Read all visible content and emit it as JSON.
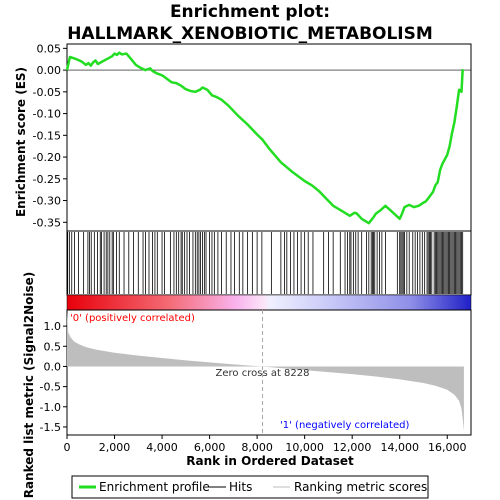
{
  "chart_data": {
    "type": "line",
    "title_line1": "Enrichment plot:",
    "title_line2": "HALLMARK_XENOBIOTIC_METABOLISM",
    "ylabel_top": "Enrichment score (ES)",
    "ylabel_bottom": "Ranked list metric (Signal2Noise)",
    "xlabel": "Rank in Ordered Dataset",
    "xlim": [
      0,
      17000
    ],
    "x_ticks": [
      0,
      2000,
      4000,
      6000,
      8000,
      10000,
      12000,
      14000,
      16000
    ],
    "x_tick_labels": [
      "0",
      "2,000",
      "4,000",
      "6,000",
      "8,000",
      "10,000",
      "12,000",
      "14,000",
      "16,000"
    ],
    "es_ylim": [
      -0.37,
      0.06
    ],
    "es_ticks": [
      0.05,
      0.0,
      -0.05,
      -0.1,
      -0.15,
      -0.2,
      -0.25,
      -0.3,
      -0.35
    ],
    "es_tick_labels": [
      "0.05",
      "0.00",
      "-0.05",
      "-0.10",
      "-0.15",
      "-0.20",
      "-0.25",
      "-0.30",
      "-0.35"
    ],
    "metric_ylim": [
      -1.7,
      1.4
    ],
    "metric_ticks": [
      1.0,
      0.5,
      0.0,
      -0.5,
      -1.0,
      -1.5
    ],
    "metric_tick_labels": [
      "1.0",
      "0.5",
      "0.0",
      "-0.5",
      "-1.0",
      "-1.5"
    ],
    "series": [
      {
        "name": "Enrichment profile",
        "color": "#00dd00",
        "x": [
          0,
          120,
          250,
          400,
          600,
          800,
          900,
          1000,
          1100,
          1200,
          1300,
          1500,
          1700,
          1900,
          2000,
          2100,
          2200,
          2300,
          2500,
          2700,
          2900,
          3100,
          3300,
          3500,
          3600,
          3800,
          4000,
          4200,
          4400,
          4600,
          4800,
          5000,
          5200,
          5400,
          5600,
          5700,
          5900,
          6100,
          6300,
          6500,
          6800,
          7200,
          7600,
          8000,
          8228,
          8500,
          9000,
          9500,
          10000,
          10300,
          10600,
          10900,
          11200,
          11600,
          11900,
          12100,
          12200,
          12400,
          12700,
          12900,
          13000,
          13200,
          13400,
          13600,
          13800,
          14000,
          14100,
          14200,
          14400,
          14600,
          14800,
          15000,
          15100,
          15200,
          15400,
          15500,
          15600,
          15700,
          15800,
          15900,
          16000,
          16100,
          16200,
          16300,
          16400,
          16500,
          16600,
          16650
        ],
        "y": [
          0.0,
          0.03,
          0.028,
          0.025,
          0.02,
          0.012,
          0.016,
          0.01,
          0.018,
          0.022,
          0.014,
          0.02,
          0.026,
          0.032,
          0.038,
          0.035,
          0.04,
          0.036,
          0.038,
          0.025,
          0.012,
          0.005,
          0.0,
          0.004,
          -0.002,
          -0.008,
          -0.012,
          -0.02,
          -0.028,
          -0.03,
          -0.036,
          -0.044,
          -0.048,
          -0.05,
          -0.045,
          -0.04,
          -0.045,
          -0.058,
          -0.062,
          -0.068,
          -0.082,
          -0.105,
          -0.125,
          -0.148,
          -0.16,
          -0.18,
          -0.212,
          -0.235,
          -0.255,
          -0.265,
          -0.278,
          -0.295,
          -0.312,
          -0.325,
          -0.335,
          -0.328,
          -0.33,
          -0.342,
          -0.352,
          -0.338,
          -0.33,
          -0.322,
          -0.312,
          -0.322,
          -0.332,
          -0.342,
          -0.33,
          -0.315,
          -0.31,
          -0.315,
          -0.312,
          -0.305,
          -0.302,
          -0.295,
          -0.28,
          -0.265,
          -0.258,
          -0.23,
          -0.215,
          -0.205,
          -0.195,
          -0.175,
          -0.145,
          -0.12,
          -0.085,
          -0.045,
          -0.05,
          0.002
        ]
      }
    ],
    "hits_legend": "Hits",
    "metric_legend": "Ranking metric scores",
    "hits": [
      30,
      110,
      200,
      320,
      480,
      700,
      880,
      950,
      1020,
      1150,
      1280,
      1400,
      1450,
      1560,
      1650,
      1720,
      1800,
      1900,
      1950,
      2080,
      2200,
      2400,
      2600,
      2800,
      3000,
      3200,
      3300,
      3450,
      3600,
      3700,
      3800,
      4000,
      4100,
      4350,
      4500,
      4600,
      4700,
      4800,
      4850,
      4950,
      5050,
      5150,
      5300,
      5400,
      5480,
      5550,
      5620,
      5700,
      5780,
      5850,
      6000,
      6100,
      6200,
      6350,
      6500,
      6700,
      6900,
      7050,
      7250,
      7400,
      7600,
      7800,
      8000,
      8200,
      8600,
      9000,
      9150,
      9250,
      9400,
      9550,
      9700,
      9850,
      10000,
      10150,
      10350,
      10800,
      11000,
      11200,
      11500,
      11700,
      11800,
      11900,
      11950,
      12050,
      12150,
      12250,
      12400,
      12600,
      12700,
      12800,
      12850,
      12900,
      12950,
      13050,
      13150,
      13250,
      13400,
      13900,
      14000,
      14050,
      14100,
      14150,
      14200,
      14300,
      14400,
      14550,
      14650,
      14750,
      14850,
      14950,
      15050,
      15150,
      15200,
      15250,
      15300,
      15350,
      15450,
      15500,
      15550,
      15600,
      15650,
      15700,
      15750,
      15800,
      15850,
      15900,
      15950,
      16000,
      16050,
      16100,
      16150,
      16200,
      16250,
      16300,
      16350,
      16400,
      16450,
      16500,
      16550,
      16600,
      16650
    ],
    "ranking_metric": {
      "x": [
        0,
        50,
        150,
        300,
        500,
        800,
        1200,
        2000,
        3000,
        4000,
        5000,
        6000,
        7000,
        8228,
        9000,
        10000,
        11000,
        12000,
        13000,
        14000,
        15000,
        15500,
        16000,
        16300,
        16500,
        16600,
        16650,
        16700
      ],
      "y": [
        1.35,
        0.85,
        0.72,
        0.62,
        0.55,
        0.48,
        0.42,
        0.34,
        0.27,
        0.21,
        0.15,
        0.1,
        0.05,
        0.0,
        -0.04,
        -0.09,
        -0.14,
        -0.19,
        -0.25,
        -0.32,
        -0.41,
        -0.48,
        -0.58,
        -0.7,
        -0.85,
        -1.05,
        -1.3,
        -1.6
      ]
    },
    "zero_cross_label": "Zero cross at 8228",
    "zero_cross_rank": 8228,
    "pos_label": "'0' (positively correlated)",
    "neg_label": "'1' (negatively correlated)",
    "pos_color": "#ff0000",
    "neg_color": "#0000ff"
  }
}
